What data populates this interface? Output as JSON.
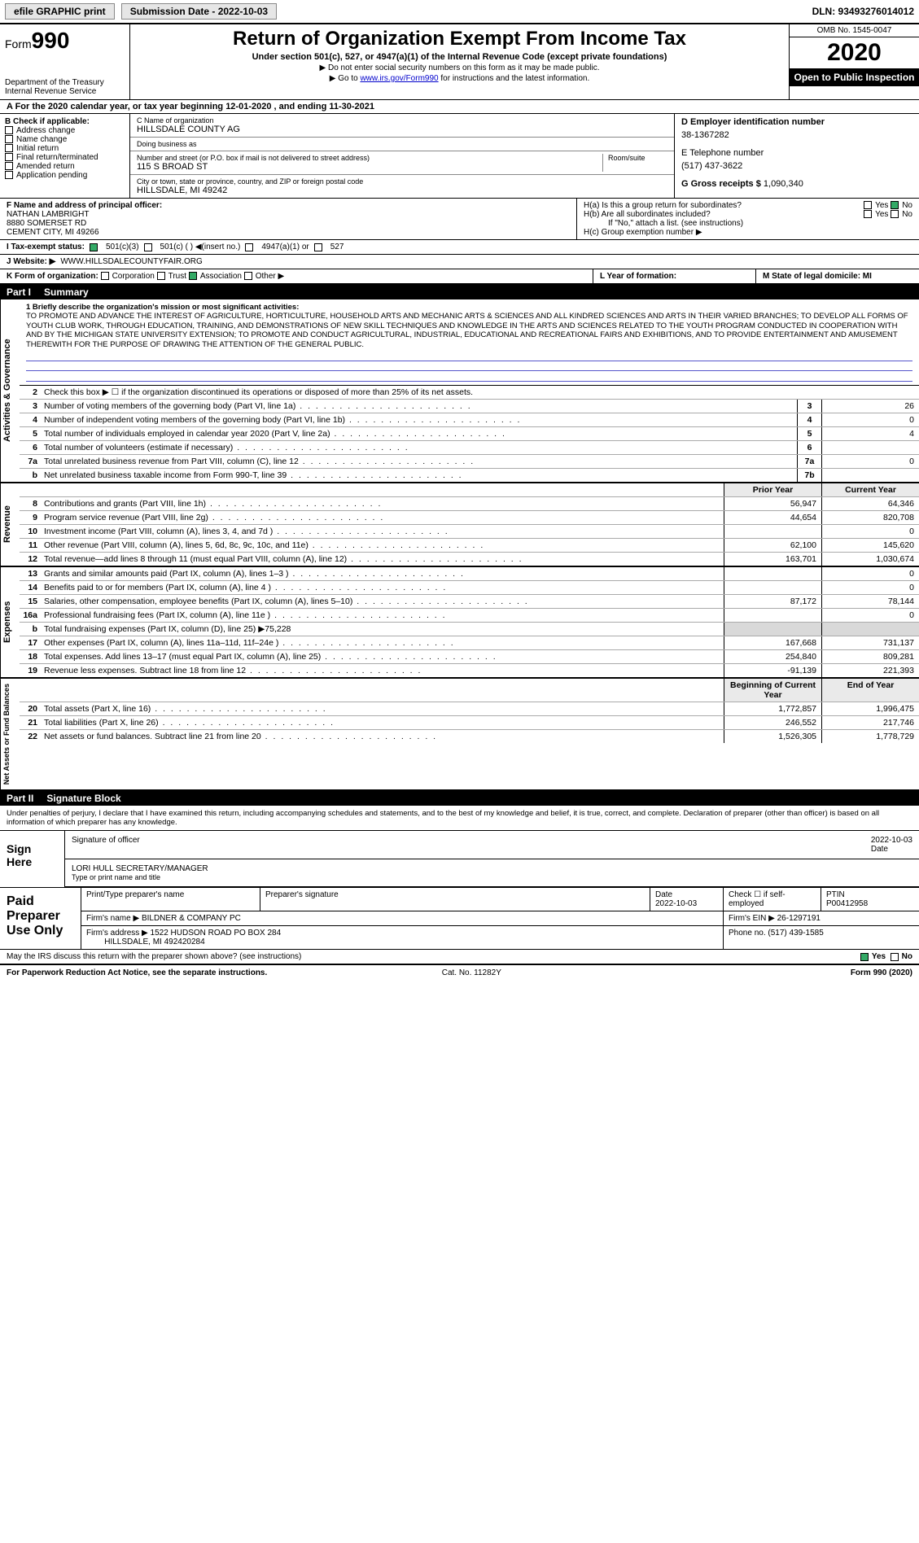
{
  "topbar": {
    "efile_label": "efile GRAPHIC print",
    "submission_label": "Submission Date - 2022-10-03",
    "dln": "DLN: 93493276014012"
  },
  "header": {
    "form_label": "Form",
    "form_number": "990",
    "dept": "Department of the Treasury\nInternal Revenue Service",
    "title": "Return of Organization Exempt From Income Tax",
    "subtitle": "Under section 501(c), 527, or 4947(a)(1) of the Internal Revenue Code (except private foundations)",
    "note1": "▶ Do not enter social security numbers on this form as it may be made public.",
    "note2_prefix": "▶ Go to ",
    "note2_link": "www.irs.gov/Form990",
    "note2_suffix": " for instructions and the latest information.",
    "omb": "OMB No. 1545-0047",
    "year": "2020",
    "open": "Open to Public Inspection"
  },
  "period": "A For the 2020 calendar year, or tax year beginning 12-01-2020   , and ending 11-30-2021",
  "B": {
    "label": "B Check if applicable:",
    "items": [
      "Address change",
      "Name change",
      "Initial return",
      "Final return/terminated",
      "Amended return",
      "Application pending"
    ]
  },
  "C": {
    "name_label": "C Name of organization",
    "name": "HILLSDALE COUNTY AG",
    "dba_label": "Doing business as",
    "dba": "",
    "street_label": "Number and street (or P.O. box if mail is not delivered to street address)",
    "room_label": "Room/suite",
    "street": "115 S BROAD ST",
    "city_label": "City or town, state or province, country, and ZIP or foreign postal code",
    "city": "HILLSDALE, MI  49242"
  },
  "D": {
    "label": "D Employer identification number",
    "value": "38-1367282"
  },
  "E": {
    "label": "E Telephone number",
    "value": "(517) 437-3622"
  },
  "G": {
    "label": "G Gross receipts $",
    "value": "1,090,340"
  },
  "F": {
    "label": "F  Name and address of principal officer:",
    "name": "NATHAN LAMBRIGHT",
    "addr1": "8880 SOMERSET RD",
    "addr2": "CEMENT CITY, MI  49266"
  },
  "H": {
    "a": "H(a)  Is this a group return for subordinates?",
    "a_yes": "Yes",
    "a_no_checked": "No",
    "b": "H(b)  Are all subordinates included?",
    "b_yes": "Yes",
    "b_no": "No",
    "b_note": "If \"No,\" attach a list. (see instructions)",
    "c": "H(c)  Group exemption number ▶"
  },
  "I": {
    "label": "I  Tax-exempt status:",
    "c3": "501(c)(3)",
    "c": "501(c) (  ) ◀(insert no.)",
    "a1": "4947(a)(1) or",
    "s527": "527"
  },
  "J": {
    "label": "J  Website: ▶",
    "value": "WWW.HILLSDALECOUNTYFAIR.ORG"
  },
  "K": {
    "label": "K Form of organization:",
    "corp": "Corporation",
    "trust": "Trust",
    "assoc_checked": "Association",
    "other": "Other ▶"
  },
  "L": {
    "label": "L Year of formation:"
  },
  "M": {
    "label": "M State of legal domicile: MI"
  },
  "part1": {
    "num": "Part I",
    "title": "Summary"
  },
  "mission": {
    "label": "1  Briefly describe the organization's mission or most significant activities:",
    "text": "TO PROMOTE AND ADVANCE THE INTEREST OF AGRICULTURE, HORTICULTURE, HOUSEHOLD ARTS AND MECHANIC ARTS & SCIENCES AND ALL KINDRED SCIENCES AND ARTS IN THEIR VARIED BRANCHES; TO DEVELOP ALL FORMS OF YOUTH CLUB WORK, THROUGH EDUCATION, TRAINING, AND DEMONSTRATIONS OF NEW SKILL TECHNIQUES AND KNOWLEDGE IN THE ARTS AND SCIENCES RELATED TO THE YOUTH PROGRAM CONDUCTED IN COOPERATION WITH AND BY THE MICHIGAN STATE UNIVERSITY EXTENSION; TO PROMOTE AND CONDUCT AGRICULTURAL, INDUSTRIAL, EDUCATIONAL AND RECREATIONAL FAIRS AND EXHIBITIONS, AND TO PROVIDE ENTERTAINMENT AND AMUSEMENT THEREWITH FOR THE PURPOSE OF DRAWING THE ATTENTION OF THE GENERAL PUBLIC."
  },
  "gov": {
    "strip": "Activities & Governance",
    "r2": "Check this box ▶ ☐ if the organization discontinued its operations or disposed of more than 25% of its net assets.",
    "rows": [
      {
        "n": "3",
        "d": "Number of voting members of the governing body (Part VI, line 1a)",
        "box": "3",
        "v": "26"
      },
      {
        "n": "4",
        "d": "Number of independent voting members of the governing body (Part VI, line 1b)",
        "box": "4",
        "v": "0"
      },
      {
        "n": "5",
        "d": "Total number of individuals employed in calendar year 2020 (Part V, line 2a)",
        "box": "5",
        "v": "4"
      },
      {
        "n": "6",
        "d": "Total number of volunteers (estimate if necessary)",
        "box": "6",
        "v": ""
      },
      {
        "n": "7a",
        "d": "Total unrelated business revenue from Part VIII, column (C), line 12",
        "box": "7a",
        "v": "0"
      },
      {
        "n": "b",
        "d": "Net unrelated business taxable income from Form 990-T, line 39",
        "box": "7b",
        "v": ""
      }
    ]
  },
  "pycy": {
    "py": "Prior Year",
    "cy": "Current Year"
  },
  "rev": {
    "strip": "Revenue",
    "rows": [
      {
        "n": "8",
        "d": "Contributions and grants (Part VIII, line 1h)",
        "py": "56,947",
        "cy": "64,346"
      },
      {
        "n": "9",
        "d": "Program service revenue (Part VIII, line 2g)",
        "py": "44,654",
        "cy": "820,708"
      },
      {
        "n": "10",
        "d": "Investment income (Part VIII, column (A), lines 3, 4, and 7d )",
        "py": "",
        "cy": "0"
      },
      {
        "n": "11",
        "d": "Other revenue (Part VIII, column (A), lines 5, 6d, 8c, 9c, 10c, and 11e)",
        "py": "62,100",
        "cy": "145,620"
      },
      {
        "n": "12",
        "d": "Total revenue—add lines 8 through 11 (must equal Part VIII, column (A), line 12)",
        "py": "163,701",
        "cy": "1,030,674"
      }
    ]
  },
  "exp": {
    "strip": "Expenses",
    "rows": [
      {
        "n": "13",
        "d": "Grants and similar amounts paid (Part IX, column (A), lines 1–3 )",
        "py": "",
        "cy": "0"
      },
      {
        "n": "14",
        "d": "Benefits paid to or for members (Part IX, column (A), line 4 )",
        "py": "",
        "cy": "0"
      },
      {
        "n": "15",
        "d": "Salaries, other compensation, employee benefits (Part IX, column (A), lines 5–10)",
        "py": "87,172",
        "cy": "78,144"
      },
      {
        "n": "16a",
        "d": "Professional fundraising fees (Part IX, column (A), line 11e )",
        "py": "",
        "cy": "0"
      },
      {
        "n": "b",
        "d": "Total fundraising expenses (Part IX, column (D), line 25) ▶75,228",
        "shade": true
      },
      {
        "n": "17",
        "d": "Other expenses (Part IX, column (A), lines 11a–11d, 11f–24e )",
        "py": "167,668",
        "cy": "731,137"
      },
      {
        "n": "18",
        "d": "Total expenses. Add lines 13–17 (must equal Part IX, column (A), line 25)",
        "py": "254,840",
        "cy": "809,281"
      },
      {
        "n": "19",
        "d": "Revenue less expenses. Subtract line 18 from line 12",
        "py": "-91,139",
        "cy": "221,393"
      }
    ]
  },
  "net": {
    "strip": "Net Assets or Fund Balances",
    "hpy": "Beginning of Current Year",
    "hcy": "End of Year",
    "rows": [
      {
        "n": "20",
        "d": "Total assets (Part X, line 16)",
        "py": "1,772,857",
        "cy": "1,996,475"
      },
      {
        "n": "21",
        "d": "Total liabilities (Part X, line 26)",
        "py": "246,552",
        "cy": "217,746"
      },
      {
        "n": "22",
        "d": "Net assets or fund balances. Subtract line 21 from line 20",
        "py": "1,526,305",
        "cy": "1,778,729"
      }
    ]
  },
  "part2": {
    "num": "Part II",
    "title": "Signature Block"
  },
  "sig": {
    "decl": "Under penalties of perjury, I declare that I have examined this return, including accompanying schedules and statements, and to the best of my knowledge and belief, it is true, correct, and complete. Declaration of preparer (other than officer) is based on all information of which preparer has any knowledge.",
    "sign_here": "Sign Here",
    "sig_officer": "Signature of officer",
    "date": "2022-10-03",
    "date_label": "Date",
    "officer": "LORI HULL  SECRETARY/MANAGER",
    "type_label": "Type or print name and title"
  },
  "prep": {
    "label": "Paid Preparer Use Only",
    "h_name": "Print/Type preparer's name",
    "h_sig": "Preparer's signature",
    "h_date": "Date",
    "date": "2022-10-03",
    "self": "Check ☐ if self-employed",
    "ptin_label": "PTIN",
    "ptin": "P00412958",
    "firm_label": "Firm's name   ▶",
    "firm": "BILDNER & COMPANY PC",
    "ein_label": "Firm's EIN ▶",
    "ein": "26-1297191",
    "addr_label": "Firm's address ▶",
    "addr1": "1522 HUDSON ROAD PO BOX 284",
    "addr2": "HILLSDALE, MI  492420284",
    "phone_label": "Phone no.",
    "phone": "(517) 439-1585"
  },
  "discuss": {
    "text": "May the IRS discuss this return with the preparer shown above? (see instructions)",
    "yes": "Yes",
    "no": "No"
  },
  "footer": {
    "left": "For Paperwork Reduction Act Notice, see the separate instructions.",
    "cat": "Cat. No. 11282Y",
    "right": "Form 990 (2020)"
  }
}
